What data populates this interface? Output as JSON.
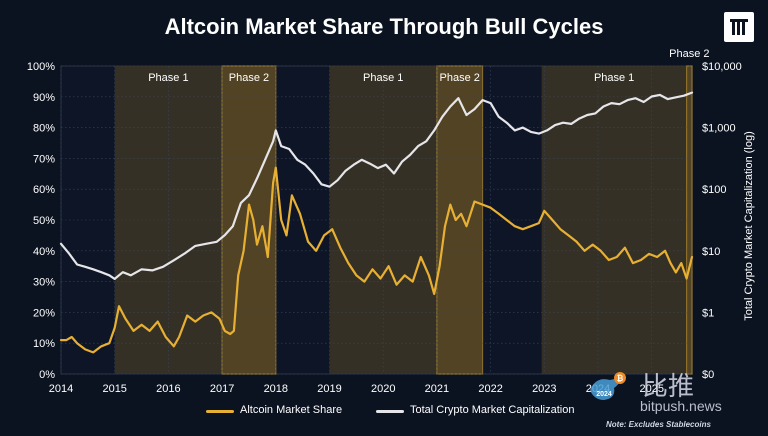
{
  "title": "Altcoin Market Share Through Bull Cycles",
  "note": "Note: Excludes Stablecoins",
  "watermark": {
    "text_cn": "比推",
    "url": "bitpush.news",
    "year": "2024"
  },
  "colors": {
    "background": "#0b1220",
    "altcoin": "#e8b033",
    "total": "#e6e6ea",
    "phase1_fill": "#3a3326",
    "phase2_fill": "#8a6a22",
    "phase2_border": "#e8b033"
  },
  "chart_data": {
    "type": "line",
    "xlabel": "",
    "ylabel_left": "",
    "ylabel_right": "Total Crypto Market Capitalization (log)",
    "xlim": [
      2014,
      2025.75
    ],
    "ylim_left": [
      0,
      100
    ],
    "ylim_right": [
      "$0",
      "$10,000"
    ],
    "x_ticks": [
      "2014",
      "2015",
      "2016",
      "2017",
      "2018",
      "2019",
      "2020",
      "2021",
      "2022",
      "2023",
      "2024",
      "2025"
    ],
    "y_ticks_left": [
      "0%",
      "10%",
      "20%",
      "30%",
      "40%",
      "50%",
      "60%",
      "70%",
      "80%",
      "90%",
      "100%"
    ],
    "y_ticks_right": [
      "$0",
      "$1",
      "$10",
      "$100",
      "$1,000",
      "$10,000"
    ],
    "phases": [
      {
        "label": "Phase 1",
        "start": 2015.0,
        "end": 2017.0,
        "kind": "phase1"
      },
      {
        "label": "Phase 2",
        "start": 2017.0,
        "end": 2018.0,
        "kind": "phase2"
      },
      {
        "label": "Phase 1",
        "start": 2019.0,
        "end": 2021.0,
        "kind": "phase1"
      },
      {
        "label": "Phase 2",
        "start": 2021.0,
        "end": 2021.85,
        "kind": "phase2"
      },
      {
        "label": "Phase 1",
        "start": 2022.95,
        "end": 2025.65,
        "kind": "phase1"
      },
      {
        "label": "Phase 2",
        "start": 2025.65,
        "end": 2025.75,
        "kind": "phase2"
      }
    ],
    "series": [
      {
        "name": "Altcoin Market Share",
        "axis": "left",
        "x": [
          2014.0,
          2014.1,
          2014.2,
          2014.3,
          2014.45,
          2014.6,
          2014.75,
          2014.9,
          2015.0,
          2015.08,
          2015.2,
          2015.35,
          2015.5,
          2015.65,
          2015.8,
          2015.95,
          2016.1,
          2016.2,
          2016.35,
          2016.5,
          2016.65,
          2016.8,
          2016.95,
          2017.05,
          2017.15,
          2017.22,
          2017.3,
          2017.4,
          2017.5,
          2017.58,
          2017.65,
          2017.75,
          2017.85,
          2017.95,
          2018.0,
          2018.1,
          2018.2,
          2018.3,
          2018.45,
          2018.6,
          2018.75,
          2018.9,
          2019.05,
          2019.2,
          2019.35,
          2019.5,
          2019.65,
          2019.8,
          2019.95,
          2020.1,
          2020.25,
          2020.4,
          2020.55,
          2020.7,
          2020.85,
          2020.95,
          2021.05,
          2021.15,
          2021.25,
          2021.35,
          2021.45,
          2021.55,
          2021.7,
          2021.85,
          2022.0,
          2022.15,
          2022.3,
          2022.45,
          2022.6,
          2022.75,
          2022.9,
          2023.0,
          2023.15,
          2023.3,
          2023.45,
          2023.6,
          2023.75,
          2023.9,
          2024.05,
          2024.2,
          2024.35,
          2024.5,
          2024.65,
          2024.8,
          2024.95,
          2025.1,
          2025.25,
          2025.35,
          2025.45,
          2025.55,
          2025.65,
          2025.75
        ],
        "values": [
          11,
          11,
          12,
          10,
          8,
          7,
          9,
          10,
          15,
          22,
          18,
          14,
          16,
          14,
          17,
          12,
          9,
          12,
          19,
          17,
          19,
          20,
          18,
          14,
          13,
          14,
          32,
          40,
          55,
          50,
          42,
          48,
          38,
          62,
          67,
          50,
          45,
          58,
          52,
          43,
          40,
          45,
          47,
          41,
          36,
          32,
          30,
          34,
          31,
          35,
          29,
          32,
          30,
          38,
          32,
          26,
          35,
          48,
          55,
          50,
          52,
          48,
          56,
          55,
          54,
          52,
          50,
          48,
          47,
          48,
          49,
          53,
          50,
          47,
          45,
          43,
          40,
          42,
          40,
          37,
          38,
          41,
          36,
          37,
          39,
          38,
          40,
          36,
          33,
          36,
          31,
          38
        ]
      },
      {
        "name": "Total Crypto Market Capitalization",
        "axis": "right",
        "x": [
          2014.0,
          2014.15,
          2014.3,
          2014.45,
          2014.6,
          2014.75,
          2014.9,
          2015.0,
          2015.15,
          2015.3,
          2015.5,
          2015.7,
          2015.9,
          2016.1,
          2016.3,
          2016.5,
          2016.7,
          2016.9,
          2017.05,
          2017.2,
          2017.35,
          2017.5,
          2017.65,
          2017.8,
          2017.95,
          2018.0,
          2018.1,
          2018.25,
          2018.4,
          2018.55,
          2018.7,
          2018.85,
          2019.0,
          2019.15,
          2019.3,
          2019.45,
          2019.6,
          2019.75,
          2019.9,
          2020.05,
          2020.2,
          2020.35,
          2020.5,
          2020.65,
          2020.8,
          2020.95,
          2021.1,
          2021.25,
          2021.4,
          2021.55,
          2021.7,
          2021.85,
          2022.0,
          2022.15,
          2022.3,
          2022.45,
          2022.6,
          2022.75,
          2022.9,
          2023.05,
          2023.2,
          2023.35,
          2023.5,
          2023.65,
          2023.8,
          2023.95,
          2024.1,
          2024.25,
          2024.4,
          2024.55,
          2024.7,
          2024.85,
          2025.0,
          2025.15,
          2025.3,
          2025.45,
          2025.6,
          2025.75
        ],
        "values": [
          13,
          9,
          6,
          5.5,
          5,
          4.5,
          4,
          3.5,
          4.5,
          4,
          5,
          4.8,
          5.5,
          7,
          9,
          12,
          13,
          14,
          18,
          25,
          60,
          80,
          150,
          300,
          600,
          900,
          500,
          450,
          300,
          250,
          180,
          120,
          110,
          140,
          200,
          250,
          300,
          260,
          220,
          250,
          180,
          280,
          360,
          500,
          600,
          900,
          1500,
          2200,
          3000,
          1600,
          2000,
          2800,
          2500,
          1500,
          1200,
          900,
          1000,
          850,
          800,
          900,
          1100,
          1200,
          1150,
          1400,
          1600,
          1700,
          2200,
          2500,
          2400,
          2800,
          3000,
          2600,
          3200,
          3400,
          2900,
          3100,
          3300,
          3700
        ]
      }
    ]
  }
}
